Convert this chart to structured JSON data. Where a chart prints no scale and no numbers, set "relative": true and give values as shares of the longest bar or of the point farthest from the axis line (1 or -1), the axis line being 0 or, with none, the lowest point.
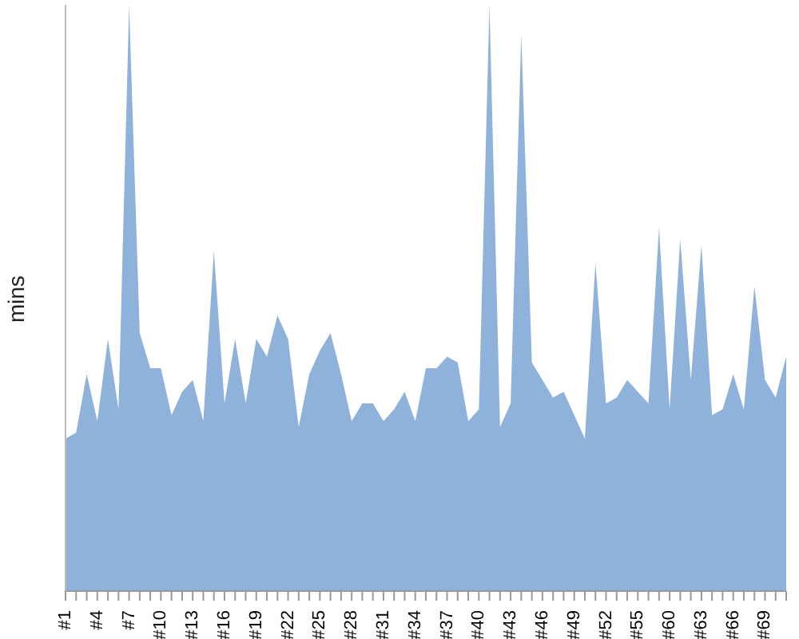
{
  "chart_data": {
    "type": "area",
    "ylabel": "mins",
    "relative": true,
    "color": "#8fb2db",
    "grid": false,
    "categories": [
      "#1",
      null,
      null,
      "#4",
      null,
      null,
      "#7",
      null,
      null,
      "#10",
      null,
      null,
      "#13",
      null,
      null,
      "#16",
      null,
      null,
      "#19",
      null,
      null,
      "#22",
      null,
      null,
      "#25",
      null,
      null,
      "#28",
      null,
      null,
      "#31",
      null,
      null,
      "#34",
      null,
      null,
      "#37",
      null,
      null,
      "#40",
      null,
      null,
      "#43",
      null,
      null,
      "#46",
      null,
      null,
      "#49",
      null,
      null,
      "#52",
      null,
      null,
      "#55",
      null,
      null,
      "#60",
      null,
      null,
      "#63",
      null,
      null,
      "#66",
      null,
      null,
      "#69",
      null,
      null
    ],
    "values": [
      0.26,
      0.27,
      0.37,
      0.29,
      0.43,
      0.31,
      1,
      0.44,
      0.38,
      0.38,
      0.3,
      0.34,
      0.36,
      0.29,
      0.58,
      0.32,
      0.43,
      0.32,
      0.43,
      0.4,
      0.47,
      0.43,
      0.28,
      0.37,
      0.41,
      0.44,
      0.37,
      0.29,
      0.32,
      0.32,
      0.29,
      0.31,
      0.34,
      0.29,
      0.38,
      0.38,
      0.4,
      0.39,
      0.29,
      0.31,
      1,
      0.28,
      0.32,
      0.95,
      0.39,
      0.36,
      0.33,
      0.34,
      0.3,
      0.26,
      0.56,
      0.32,
      0.33,
      0.36,
      0.34,
      0.32,
      0.62,
      0.31,
      0.6,
      0.36,
      0.59,
      0.3,
      0.31,
      0.37,
      0.31,
      0.52,
      0.36,
      0.33,
      0.4
    ]
  }
}
